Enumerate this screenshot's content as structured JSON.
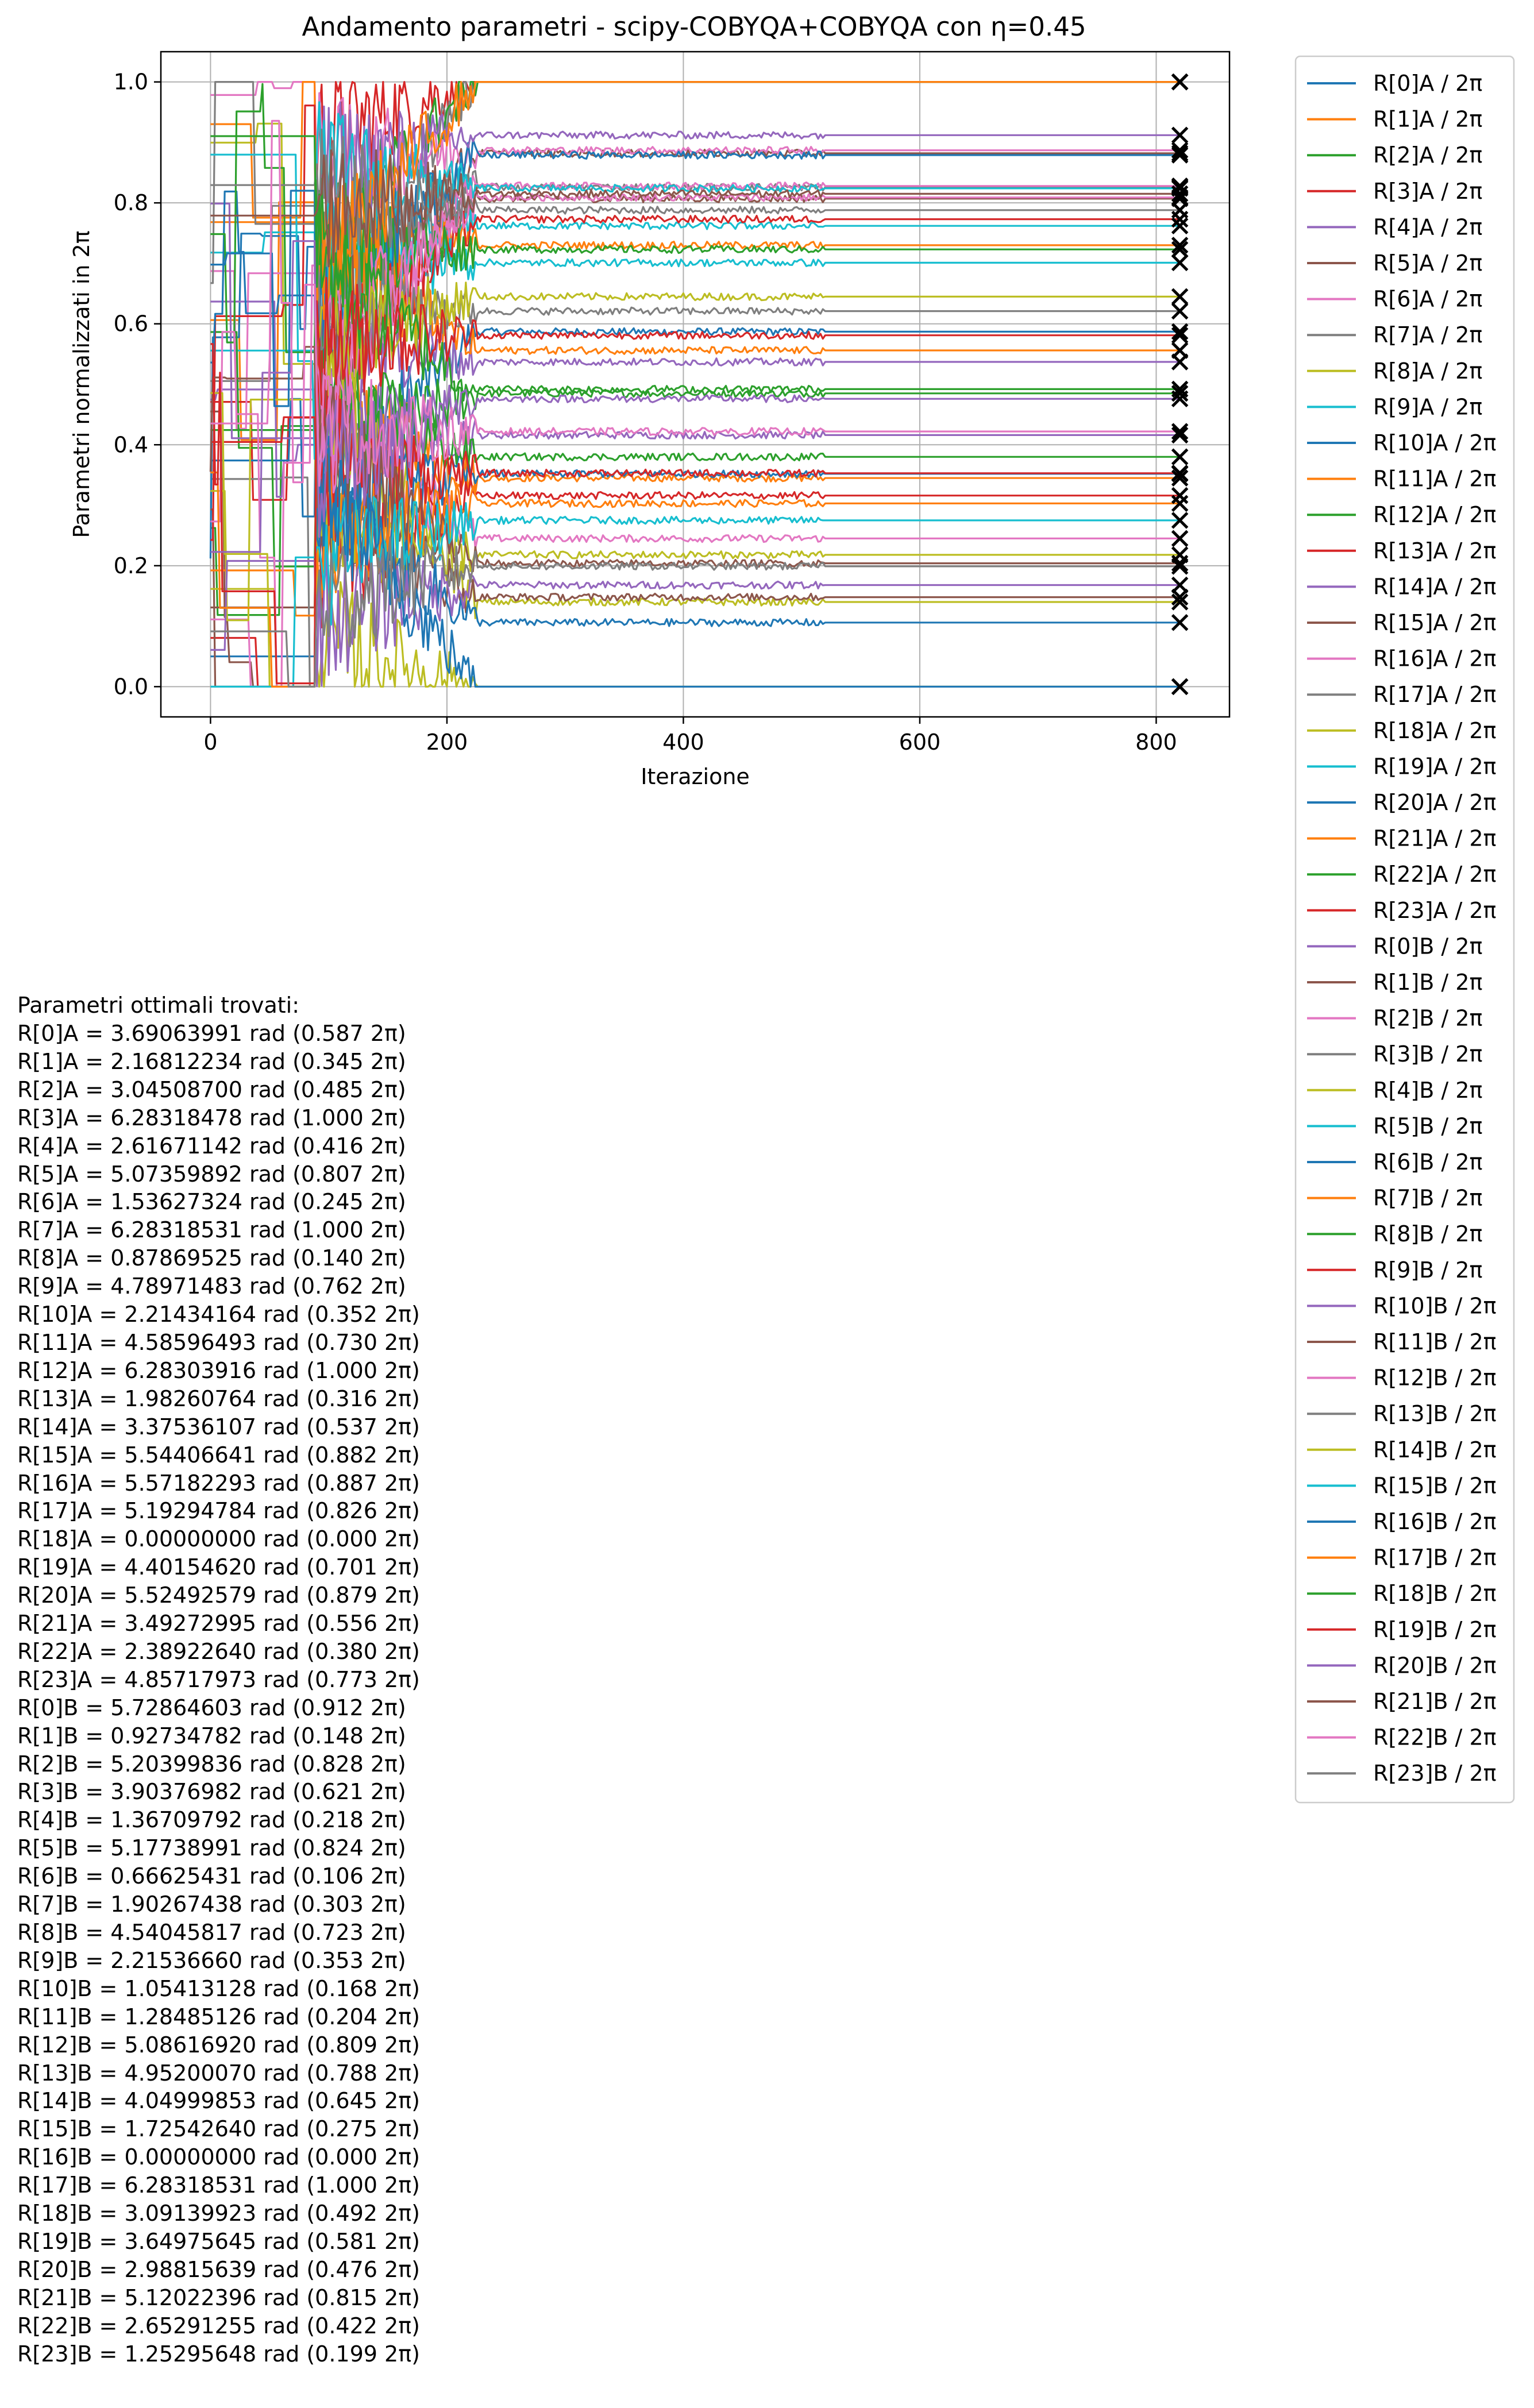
{
  "chart_data": {
    "type": "line",
    "title": "Andamento parametri - scipy-COBYQA+COBYQA con η=0.45",
    "xlabel": "Iterazione",
    "ylabel": "Parametri normalizzati in 2π",
    "xlim": [
      -42,
      862
    ],
    "ylim": [
      -0.05,
      1.05
    ],
    "xticks": [
      0,
      200,
      400,
      600,
      800
    ],
    "xtick_labels": [
      "0",
      "200",
      "400",
      "600",
      "800"
    ],
    "yticks": [
      0.0,
      0.2,
      0.4,
      0.6,
      0.8,
      1.0
    ],
    "ytick_labels": [
      "0.0",
      "0.2",
      "0.4",
      "0.6",
      "0.8",
      "1.0"
    ],
    "grid": true,
    "legend_position": "outside-right",
    "final_iteration": 820,
    "final_marker": "x",
    "palette": [
      "#1f77b4",
      "#ff7f0e",
      "#2ca02c",
      "#d62728",
      "#9467bd",
      "#8c564b",
      "#e377c2",
      "#7f7f7f",
      "#bcbd22",
      "#17becf"
    ],
    "series": [
      {
        "name": "R[0]A / 2π",
        "final": 0.587
      },
      {
        "name": "R[1]A / 2π",
        "final": 0.345
      },
      {
        "name": "R[2]A / 2π",
        "final": 0.485
      },
      {
        "name": "R[3]A / 2π",
        "final": 1.0
      },
      {
        "name": "R[4]A / 2π",
        "final": 0.416
      },
      {
        "name": "R[5]A / 2π",
        "final": 0.807
      },
      {
        "name": "R[6]A / 2π",
        "final": 0.245
      },
      {
        "name": "R[7]A / 2π",
        "final": 1.0
      },
      {
        "name": "R[8]A / 2π",
        "final": 0.14
      },
      {
        "name": "R[9]A / 2π",
        "final": 0.762
      },
      {
        "name": "R[10]A / 2π",
        "final": 0.352
      },
      {
        "name": "R[11]A / 2π",
        "final": 0.73
      },
      {
        "name": "R[12]A / 2π",
        "final": 1.0
      },
      {
        "name": "R[13]A / 2π",
        "final": 0.316
      },
      {
        "name": "R[14]A / 2π",
        "final": 0.537
      },
      {
        "name": "R[15]A / 2π",
        "final": 0.882
      },
      {
        "name": "R[16]A / 2π",
        "final": 0.887
      },
      {
        "name": "R[17]A / 2π",
        "final": 0.826
      },
      {
        "name": "R[18]A / 2π",
        "final": 0.0
      },
      {
        "name": "R[19]A / 2π",
        "final": 0.701
      },
      {
        "name": "R[20]A / 2π",
        "final": 0.879
      },
      {
        "name": "R[21]A / 2π",
        "final": 0.556
      },
      {
        "name": "R[22]A / 2π",
        "final": 0.38
      },
      {
        "name": "R[23]A / 2π",
        "final": 0.773
      },
      {
        "name": "R[0]B / 2π",
        "final": 0.912
      },
      {
        "name": "R[1]B / 2π",
        "final": 0.148
      },
      {
        "name": "R[2]B / 2π",
        "final": 0.828
      },
      {
        "name": "R[3]B / 2π",
        "final": 0.621
      },
      {
        "name": "R[4]B / 2π",
        "final": 0.218
      },
      {
        "name": "R[5]B / 2π",
        "final": 0.824
      },
      {
        "name": "R[6]B / 2π",
        "final": 0.106
      },
      {
        "name": "R[7]B / 2π",
        "final": 0.303
      },
      {
        "name": "R[8]B / 2π",
        "final": 0.723
      },
      {
        "name": "R[9]B / 2π",
        "final": 0.353
      },
      {
        "name": "R[10]B / 2π",
        "final": 0.168
      },
      {
        "name": "R[11]B / 2π",
        "final": 0.204
      },
      {
        "name": "R[12]B / 2π",
        "final": 0.809
      },
      {
        "name": "R[13]B / 2π",
        "final": 0.788
      },
      {
        "name": "R[14]B / 2π",
        "final": 0.645
      },
      {
        "name": "R[15]B / 2π",
        "final": 0.275
      },
      {
        "name": "R[16]B / 2π",
        "final": 0.0
      },
      {
        "name": "R[17]B / 2π",
        "final": 1.0
      },
      {
        "name": "R[18]B / 2π",
        "final": 0.492
      },
      {
        "name": "R[19]B / 2π",
        "final": 0.581
      },
      {
        "name": "R[20]B / 2π",
        "final": 0.476
      },
      {
        "name": "R[21]B / 2π",
        "final": 0.815
      },
      {
        "name": "R[22]B / 2π",
        "final": 0.422
      },
      {
        "name": "R[23]B / 2π",
        "final": 0.199
      }
    ]
  },
  "results": {
    "title": "Parametri ottimali trovati:",
    "lines": [
      "R[0]A = 3.69063991 rad (0.587 2π)",
      "R[1]A = 2.16812234 rad (0.345 2π)",
      "R[2]A = 3.04508700 rad (0.485 2π)",
      "R[3]A = 6.28318478 rad (1.000 2π)",
      "R[4]A = 2.61671142 rad (0.416 2π)",
      "R[5]A = 5.07359892 rad (0.807 2π)",
      "R[6]A = 1.53627324 rad (0.245 2π)",
      "R[7]A = 6.28318531 rad (1.000 2π)",
      "R[8]A = 0.87869525 rad (0.140 2π)",
      "R[9]A = 4.78971483 rad (0.762 2π)",
      "R[10]A = 2.21434164 rad (0.352 2π)",
      "R[11]A = 4.58596493 rad (0.730 2π)",
      "R[12]A = 6.28303916 rad (1.000 2π)",
      "R[13]A = 1.98260764 rad (0.316 2π)",
      "R[14]A = 3.37536107 rad (0.537 2π)",
      "R[15]A = 5.54406641 rad (0.882 2π)",
      "R[16]A = 5.57182293 rad (0.887 2π)",
      "R[17]A = 5.19294784 rad (0.826 2π)",
      "R[18]A = 0.00000000 rad (0.000 2π)",
      "R[19]A = 4.40154620 rad (0.701 2π)",
      "R[20]A = 5.52492579 rad (0.879 2π)",
      "R[21]A = 3.49272995 rad (0.556 2π)",
      "R[22]A = 2.38922640 rad (0.380 2π)",
      "R[23]A = 4.85717973 rad (0.773 2π)",
      "R[0]B = 5.72864603 rad (0.912 2π)",
      "R[1]B = 0.92734782 rad (0.148 2π)",
      "R[2]B = 5.20399836 rad (0.828 2π)",
      "R[3]B = 3.90376982 rad (0.621 2π)",
      "R[4]B = 1.36709792 rad (0.218 2π)",
      "R[5]B = 5.17738991 rad (0.824 2π)",
      "R[6]B = 0.66625431 rad (0.106 2π)",
      "R[7]B = 1.90267438 rad (0.303 2π)",
      "R[8]B = 4.54045817 rad (0.723 2π)",
      "R[9]B = 2.21536660 rad (0.353 2π)",
      "R[10]B = 1.05413128 rad (0.168 2π)",
      "R[11]B = 1.28485126 rad (0.204 2π)",
      "R[12]B = 5.08616920 rad (0.809 2π)",
      "R[13]B = 4.95200070 rad (0.788 2π)",
      "R[14]B = 4.04999853 rad (0.645 2π)",
      "R[15]B = 1.72542640 rad (0.275 2π)",
      "R[16]B = 0.00000000 rad (0.000 2π)",
      "R[17]B = 6.28318531 rad (1.000 2π)",
      "R[18]B = 3.09139923 rad (0.492 2π)",
      "R[19]B = 3.64975645 rad (0.581 2π)",
      "R[20]B = 2.98815639 rad (0.476 2π)",
      "R[21]B = 5.12022396 rad (0.815 2π)",
      "R[22]B = 2.65291255 rad (0.422 2π)",
      "R[23]B = 1.25295648 rad (0.199 2π)"
    ]
  }
}
